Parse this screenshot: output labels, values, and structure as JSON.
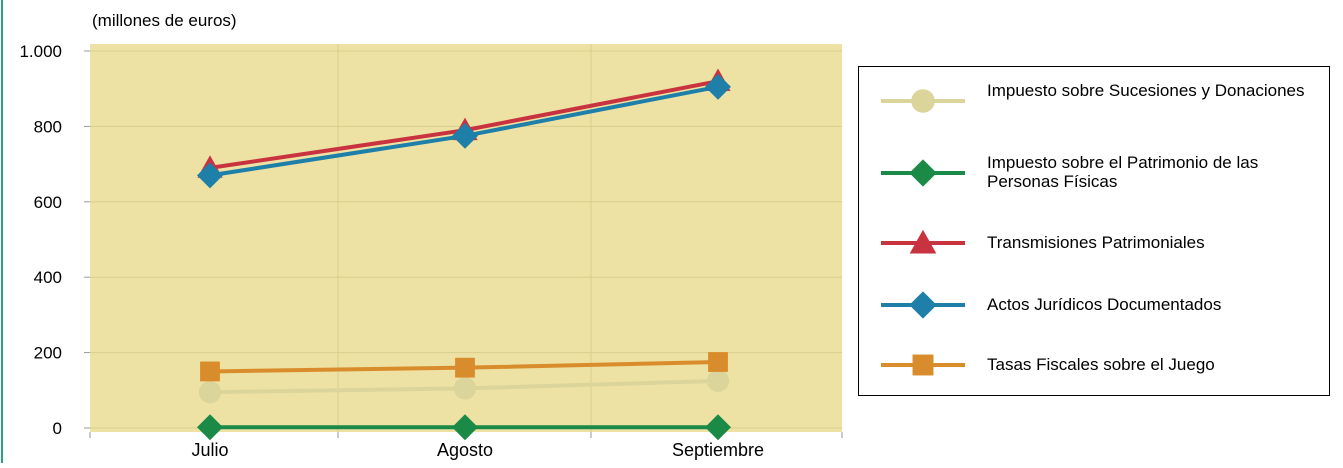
{
  "colors": {
    "plot_background": "#ede2a4",
    "grid": "#d8cd8a",
    "left_edge": "#2aa37a"
  },
  "chart_data": {
    "type": "line",
    "title": "",
    "xlabel": "",
    "ylabel": "(millones de euros)",
    "categories": [
      "Julio",
      "Agosto",
      "Septiembre"
    ],
    "ylim": [
      0,
      1000
    ],
    "yticks": [
      0,
      200,
      400,
      600,
      800,
      1000
    ],
    "ytick_labels": [
      "0",
      "200",
      "400",
      "600",
      "800",
      "1.000"
    ],
    "grid": true,
    "legend_position": "right",
    "series": [
      {
        "name": "Impuesto sobre Sucesiones y Donaciones",
        "values": [
          95,
          105,
          125
        ],
        "color": "#dbd59c",
        "marker": "circle"
      },
      {
        "name": "Impuesto sobre el Patrimonio de las Personas Físicas",
        "values": [
          2,
          2,
          2
        ],
        "color": "#1a8a46",
        "marker": "diamond"
      },
      {
        "name": "Transmisiones Patrimoniales",
        "values": [
          690,
          790,
          920
        ],
        "color": "#c9323f",
        "marker": "triangle"
      },
      {
        "name": "Actos Jurídicos Documentados",
        "values": [
          670,
          775,
          905
        ],
        "color": "#1e7fa8",
        "marker": "diamond"
      },
      {
        "name": "Tasas Fiscales sobre el Juego",
        "values": [
          150,
          160,
          175
        ],
        "color": "#d98c2b",
        "marker": "square"
      }
    ]
  }
}
